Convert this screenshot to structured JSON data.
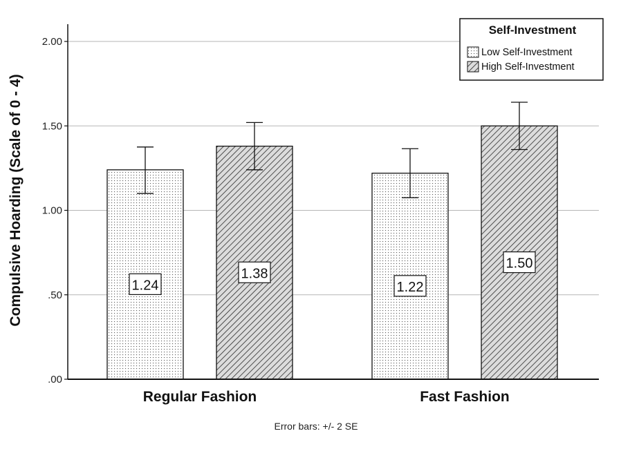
{
  "chart_data": {
    "type": "bar",
    "categories": [
      "Regular Fashion",
      "Fast Fashion"
    ],
    "series": [
      {
        "name": "Low Self-Investment",
        "values": [
          1.24,
          1.22
        ],
        "error_low": [
          1.1,
          1.075
        ],
        "error_high": [
          1.375,
          1.365
        ],
        "pattern": "dots",
        "value_labels": [
          "1.24",
          "1.22"
        ]
      },
      {
        "name": "High Self-Investment",
        "values": [
          1.38,
          1.5
        ],
        "error_low": [
          1.24,
          1.36
        ],
        "error_high": [
          1.52,
          1.64
        ],
        "pattern": "diagonal-hatch",
        "value_labels": [
          "1.38",
          "1.50"
        ]
      }
    ],
    "ylabel": "Compulsive Hoarding (Scale of 0 - 4)",
    "xlabel": "",
    "ylim": [
      0,
      2.0
    ],
    "yticks": [
      0,
      0.5,
      1.0,
      1.5,
      2.0
    ],
    "ytick_labels": [
      ".00",
      ".50",
      "1.00",
      "1.50",
      "2.00"
    ],
    "legend_title": "Self-Investment",
    "legend_position": "top-right",
    "grid": true,
    "footnote": "Error bars: +/- 2 SE"
  }
}
